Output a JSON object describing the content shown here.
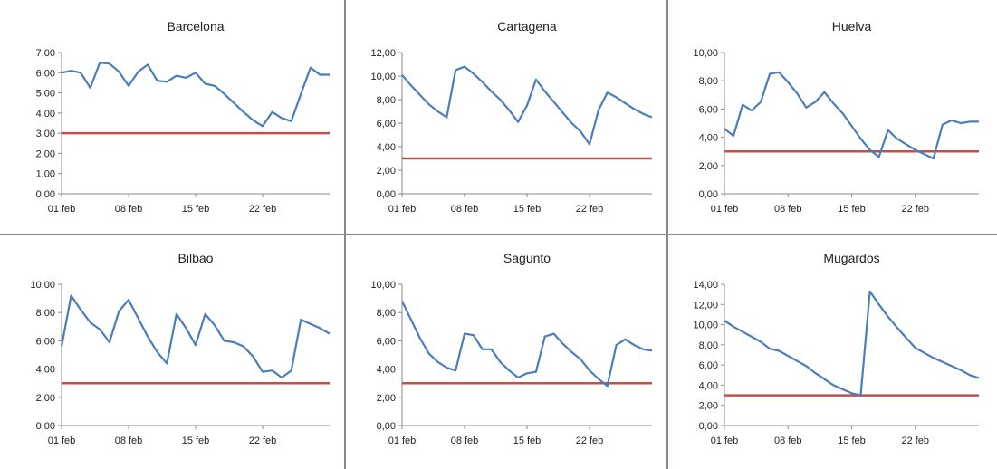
{
  "chart_data": [
    {
      "type": "line",
      "title": "Barcelona",
      "ylim": [
        0,
        7
      ],
      "ytick_labels": [
        "0,00",
        "1,00",
        "2,00",
        "3,00",
        "4,00",
        "5,00",
        "6,00",
        "7,00"
      ],
      "ytick_values": [
        0,
        1,
        2,
        3,
        4,
        5,
        6,
        7
      ],
      "xtick_labels": [
        "01 feb",
        "08 feb",
        "15 feb",
        "22 feb"
      ],
      "xtick_days": [
        1,
        8,
        15,
        22
      ],
      "x_days": [
        1,
        2,
        3,
        4,
        5,
        6,
        7,
        8,
        9,
        10,
        11,
        12,
        13,
        14,
        15,
        16,
        17,
        18,
        19,
        20,
        21,
        22,
        23,
        24,
        25,
        26,
        27,
        28,
        29
      ],
      "series": [
        {
          "values": [
            6.0,
            6.1,
            6.0,
            5.25,
            6.5,
            6.45,
            6.05,
            5.35,
            6.05,
            6.4,
            5.6,
            5.55,
            5.85,
            5.75,
            6.0,
            5.45,
            5.35,
            4.95,
            4.5,
            4.05,
            3.65,
            3.35,
            4.05,
            3.75,
            3.6,
            4.95,
            6.25,
            5.9,
            5.9
          ]
        }
      ],
      "threshold": 3.0,
      "colors": {
        "line": "#4a7ebb",
        "threshold": "#c0504d"
      }
    },
    {
      "type": "line",
      "title": "Cartagena",
      "ylim": [
        0,
        12
      ],
      "ytick_labels": [
        "0,00",
        "2,00",
        "4,00",
        "6,00",
        "8,00",
        "10,00",
        "12,00"
      ],
      "ytick_values": [
        0,
        2,
        4,
        6,
        8,
        10,
        12
      ],
      "xtick_labels": [
        "01 feb",
        "08 feb",
        "15 feb",
        "22 feb"
      ],
      "xtick_days": [
        1,
        8,
        15,
        22
      ],
      "x_days": [
        1,
        2,
        3,
        4,
        5,
        6,
        7,
        8,
        9,
        10,
        11,
        12,
        13,
        14,
        15,
        16,
        17,
        18,
        19,
        20,
        21,
        22,
        23,
        24,
        25,
        26,
        27,
        28,
        29
      ],
      "series": [
        {
          "values": [
            10.1,
            9.2,
            8.4,
            7.6,
            7.0,
            6.5,
            10.5,
            10.8,
            10.2,
            9.5,
            8.7,
            8.0,
            7.1,
            6.1,
            7.5,
            9.7,
            8.7,
            7.8,
            6.9,
            6.0,
            5.3,
            4.2,
            7.1,
            8.6,
            8.2,
            7.7,
            7.2,
            6.8,
            6.5
          ]
        }
      ],
      "threshold": 3.0,
      "colors": {
        "line": "#4a7ebb",
        "threshold": "#c0504d"
      }
    },
    {
      "type": "line",
      "title": "Huelva",
      "ylim": [
        0,
        10
      ],
      "ytick_labels": [
        "0,00",
        "2,00",
        "4,00",
        "6,00",
        "8,00",
        "10,00"
      ],
      "ytick_values": [
        0,
        2,
        4,
        6,
        8,
        10
      ],
      "xtick_labels": [
        "01 feb",
        "08 feb",
        "15 feb",
        "22 feb"
      ],
      "xtick_days": [
        1,
        8,
        15,
        22
      ],
      "x_days": [
        1,
        2,
        3,
        4,
        5,
        6,
        7,
        8,
        9,
        10,
        11,
        12,
        13,
        14,
        15,
        16,
        17,
        18,
        19,
        20,
        21,
        22,
        23,
        24,
        25,
        26,
        27,
        28,
        29
      ],
      "series": [
        {
          "values": [
            4.6,
            4.1,
            6.3,
            5.9,
            6.5,
            8.5,
            8.6,
            7.9,
            7.1,
            6.1,
            6.5,
            7.2,
            6.4,
            5.7,
            4.8,
            3.9,
            3.1,
            2.6,
            4.5,
            3.9,
            3.5,
            3.1,
            2.8,
            2.5,
            4.9,
            5.2,
            5.0,
            5.1,
            5.1
          ]
        }
      ],
      "threshold": 3.0,
      "colors": {
        "line": "#4a7ebb",
        "threshold": "#c0504d"
      }
    },
    {
      "type": "line",
      "title": "Bilbao",
      "ylim": [
        0,
        10
      ],
      "ytick_labels": [
        "0,00",
        "2,00",
        "4,00",
        "6,00",
        "8,00",
        "10,00"
      ],
      "ytick_values": [
        0,
        2,
        4,
        6,
        8,
        10
      ],
      "xtick_labels": [
        "01 feb",
        "08 feb",
        "15 feb",
        "22 feb"
      ],
      "xtick_days": [
        1,
        8,
        15,
        22
      ],
      "x_days": [
        1,
        2,
        3,
        4,
        5,
        6,
        7,
        8,
        9,
        10,
        11,
        12,
        13,
        14,
        15,
        16,
        17,
        18,
        19,
        20,
        21,
        22,
        23,
        24,
        25,
        26,
        27,
        28,
        29
      ],
      "series": [
        {
          "values": [
            5.6,
            9.2,
            8.2,
            7.3,
            6.8,
            5.9,
            8.1,
            8.9,
            7.6,
            6.3,
            5.2,
            4.4,
            7.9,
            6.9,
            5.7,
            7.9,
            7.1,
            6.0,
            5.9,
            5.6,
            4.9,
            3.8,
            3.9,
            3.4,
            3.9,
            7.5,
            7.2,
            6.9,
            6.5
          ]
        }
      ],
      "threshold": 3.0,
      "colors": {
        "line": "#4a7ebb",
        "threshold": "#c0504d"
      }
    },
    {
      "type": "line",
      "title": "Sagunto",
      "ylim": [
        0,
        10
      ],
      "ytick_labels": [
        "0,00",
        "2,00",
        "4,00",
        "6,00",
        "8,00",
        "10,00"
      ],
      "ytick_values": [
        0,
        2,
        4,
        6,
        8,
        10
      ],
      "xtick_labels": [
        "01 feb",
        "08 feb",
        "15 feb",
        "22 feb"
      ],
      "xtick_days": [
        1,
        8,
        15,
        22
      ],
      "x_days": [
        1,
        2,
        3,
        4,
        5,
        6,
        7,
        8,
        9,
        10,
        11,
        12,
        13,
        14,
        15,
        16,
        17,
        18,
        19,
        20,
        21,
        22,
        23,
        24,
        25,
        26,
        27,
        28,
        29
      ],
      "series": [
        {
          "values": [
            8.8,
            7.5,
            6.2,
            5.1,
            4.5,
            4.1,
            3.9,
            6.5,
            6.4,
            5.4,
            5.4,
            4.5,
            3.9,
            3.4,
            3.7,
            3.8,
            6.3,
            6.5,
            5.8,
            5.2,
            4.7,
            3.9,
            3.3,
            2.8,
            5.7,
            6.1,
            5.7,
            5.4,
            5.3
          ]
        }
      ],
      "threshold": 3.0,
      "colors": {
        "line": "#4a7ebb",
        "threshold": "#c0504d"
      }
    },
    {
      "type": "line",
      "title": "Mugardos",
      "ylim": [
        0,
        14
      ],
      "ytick_labels": [
        "0,00",
        "2,00",
        "4,00",
        "6,00",
        "8,00",
        "10,00",
        "12,00",
        "14,00"
      ],
      "ytick_values": [
        0,
        2,
        4,
        6,
        8,
        10,
        12,
        14
      ],
      "xtick_labels": [
        "01 feb",
        "08 feb",
        "15 feb",
        "22 feb"
      ],
      "xtick_days": [
        1,
        8,
        15,
        22
      ],
      "x_days": [
        1,
        2,
        3,
        4,
        5,
        6,
        7,
        8,
        9,
        10,
        11,
        12,
        13,
        14,
        15,
        16,
        17,
        18,
        19,
        20,
        21,
        22,
        23,
        24,
        25,
        26,
        27,
        28,
        29
      ],
      "series": [
        {
          "values": [
            10.4,
            9.8,
            9.3,
            8.8,
            8.3,
            7.6,
            7.4,
            6.9,
            6.4,
            5.9,
            5.2,
            4.6,
            4.0,
            3.6,
            3.2,
            3.0,
            13.3,
            12.0,
            10.8,
            9.7,
            8.7,
            7.7,
            7.2,
            6.7,
            6.3,
            5.9,
            5.5,
            5.0,
            4.7
          ]
        }
      ],
      "threshold": 3.0,
      "colors": {
        "line": "#4a7ebb",
        "threshold": "#c0504d"
      }
    }
  ]
}
